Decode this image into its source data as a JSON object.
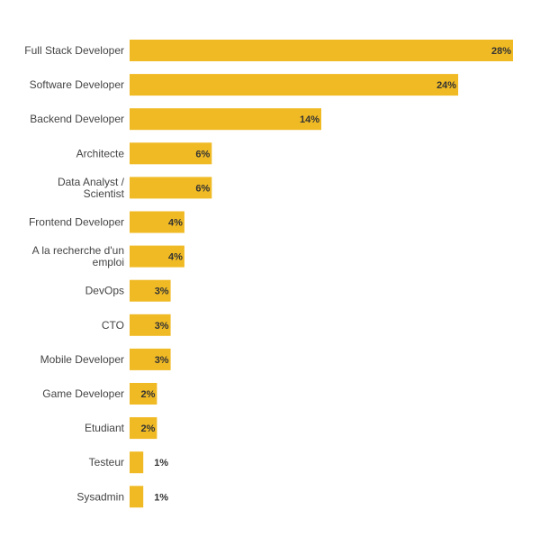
{
  "chart_data": {
    "type": "bar",
    "orientation": "horizontal",
    "categories": [
      "Full Stack Developer",
      "Software Developer",
      "Backend Developer",
      "Architecte",
      "Data Analyst / Scientist",
      "Frontend Developer",
      "A la recherche d'un emploi",
      "DevOps",
      "CTO",
      "Mobile Developer",
      "Game Developer",
      "Etudiant",
      "Testeur",
      "Sysadmin"
    ],
    "category_lines": [
      [
        "Full Stack Developer"
      ],
      [
        "Software Developer"
      ],
      [
        "Backend Developer"
      ],
      [
        "Architecte"
      ],
      [
        "Data Analyst /",
        "Scientist"
      ],
      [
        "Frontend Developer"
      ],
      [
        "A la recherche d'un",
        "emploi"
      ],
      [
        "DevOps"
      ],
      [
        "CTO"
      ],
      [
        "Mobile Developer"
      ],
      [
        "Game Developer"
      ],
      [
        "Etudiant"
      ],
      [
        "Testeur"
      ],
      [
        "Sysadmin"
      ]
    ],
    "values": [
      28,
      24,
      14,
      6,
      6,
      4,
      4,
      3,
      3,
      3,
      2,
      2,
      1,
      1
    ],
    "value_labels": [
      "28%",
      "24%",
      "14%",
      "6%",
      "6%",
      "4%",
      "4%",
      "3%",
      "3%",
      "3%",
      "2%",
      "2%",
      "1%",
      "1%"
    ],
    "bar_color": "#F0BA24",
    "title": "",
    "xlabel": "",
    "ylabel": "",
    "xlim": [
      0,
      28
    ],
    "grid": false,
    "legend": "none"
  }
}
